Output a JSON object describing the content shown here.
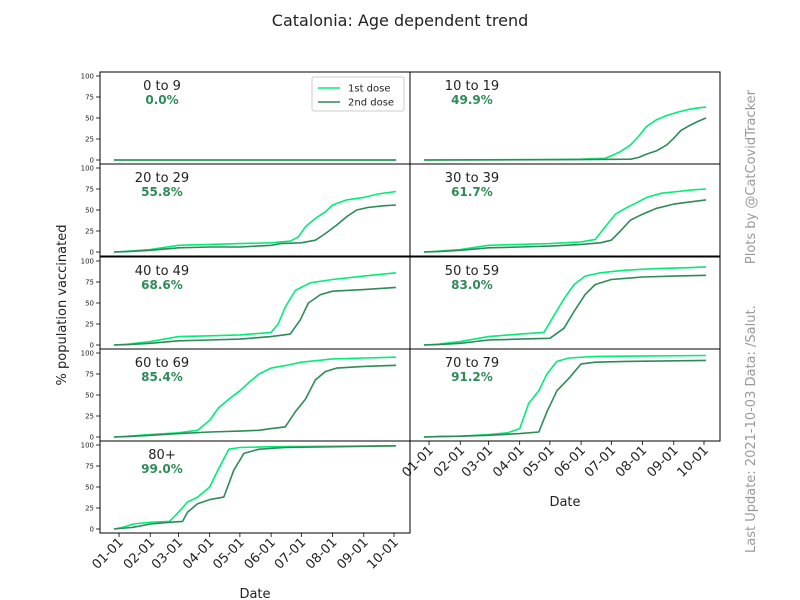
{
  "chart_data": {
    "type": "line",
    "title": "Catalonia: Age dependent trend",
    "xlabel": "Date",
    "ylabel": "% population vaccinated",
    "ylim": [
      0,
      100
    ],
    "yticks": [
      0,
      25,
      50,
      75,
      100
    ],
    "x_range": [
      "2020-12-27",
      "2021-10-03"
    ],
    "xticks": [
      {
        "date": "2021-01-01",
        "label": "01-01"
      },
      {
        "date": "2021-02-01",
        "label": "02-01"
      },
      {
        "date": "2021-03-01",
        "label": "03-01"
      },
      {
        "date": "2021-04-01",
        "label": "04-01"
      },
      {
        "date": "2021-05-01",
        "label": "05-01"
      },
      {
        "date": "2021-06-01",
        "label": "06-01"
      },
      {
        "date": "2021-07-01",
        "label": "07-01"
      },
      {
        "date": "2021-08-01",
        "label": "08-01"
      },
      {
        "date": "2021-09-01",
        "label": "09-01"
      },
      {
        "date": "2021-10-01",
        "label": "10-01"
      }
    ],
    "legend": {
      "position": "top-right",
      "entries": [
        "1st dose",
        "2nd dose"
      ]
    },
    "colors": {
      "first_dose": "#00ee77",
      "second_dose": "#2e8b57"
    },
    "groups": [
      {
        "label": "0 to 9",
        "pct": "0.0%",
        "first_dose": [
          [
            "2020-12-27",
            0
          ],
          [
            "2021-10-03",
            0
          ]
        ],
        "second_dose": [
          [
            "2020-12-27",
            0
          ],
          [
            "2021-10-03",
            0
          ]
        ]
      },
      {
        "label": "10 to 19",
        "pct": "49.9%",
        "first_dose": [
          [
            "2020-12-27",
            0
          ],
          [
            "2021-05-01",
            0.5
          ],
          [
            "2021-06-01",
            1
          ],
          [
            "2021-06-25",
            2
          ],
          [
            "2021-07-01",
            5
          ],
          [
            "2021-07-10",
            10
          ],
          [
            "2021-07-20",
            18
          ],
          [
            "2021-07-28",
            28
          ],
          [
            "2021-08-05",
            40
          ],
          [
            "2021-08-15",
            48
          ],
          [
            "2021-08-25",
            53
          ],
          [
            "2021-09-05",
            57
          ],
          [
            "2021-09-15",
            60
          ],
          [
            "2021-09-25",
            62
          ],
          [
            "2021-10-03",
            63
          ]
        ],
        "second_dose": [
          [
            "2020-12-27",
            0
          ],
          [
            "2021-06-01",
            0.5
          ],
          [
            "2021-07-20",
            1
          ],
          [
            "2021-07-28",
            3
          ],
          [
            "2021-08-05",
            7
          ],
          [
            "2021-08-15",
            11
          ],
          [
            "2021-08-25",
            18
          ],
          [
            "2021-09-01",
            26
          ],
          [
            "2021-09-08",
            35
          ],
          [
            "2021-09-15",
            40
          ],
          [
            "2021-09-25",
            46
          ],
          [
            "2021-10-03",
            50
          ]
        ]
      },
      {
        "label": "20 to 29",
        "pct": "55.8%",
        "first_dose": [
          [
            "2020-12-27",
            0
          ],
          [
            "2021-01-10",
            1
          ],
          [
            "2021-02-01",
            3
          ],
          [
            "2021-03-01",
            8
          ],
          [
            "2021-04-01",
            9
          ],
          [
            "2021-05-01",
            10
          ],
          [
            "2021-06-01",
            11
          ],
          [
            "2021-06-20",
            13
          ],
          [
            "2021-06-28",
            18
          ],
          [
            "2021-07-05",
            30
          ],
          [
            "2021-07-15",
            40
          ],
          [
            "2021-07-25",
            48
          ],
          [
            "2021-08-01",
            56
          ],
          [
            "2021-08-15",
            62
          ],
          [
            "2021-09-01",
            65
          ],
          [
            "2021-09-15",
            69
          ],
          [
            "2021-10-03",
            72
          ]
        ],
        "second_dose": [
          [
            "2020-12-27",
            0
          ],
          [
            "2021-01-10",
            0.5
          ],
          [
            "2021-02-01",
            2
          ],
          [
            "2021-03-01",
            5
          ],
          [
            "2021-04-01",
            6
          ],
          [
            "2021-05-01",
            6
          ],
          [
            "2021-06-01",
            8
          ],
          [
            "2021-06-10",
            10
          ],
          [
            "2021-07-01",
            11
          ],
          [
            "2021-07-15",
            14
          ],
          [
            "2021-07-25",
            22
          ],
          [
            "2021-08-05",
            32
          ],
          [
            "2021-08-15",
            42
          ],
          [
            "2021-08-25",
            50
          ],
          [
            "2021-09-05",
            53
          ],
          [
            "2021-09-20",
            55
          ],
          [
            "2021-10-03",
            56
          ]
        ]
      },
      {
        "label": "30 to 39",
        "pct": "61.7%",
        "first_dose": [
          [
            "2020-12-27",
            0
          ],
          [
            "2021-01-10",
            1
          ],
          [
            "2021-02-01",
            3
          ],
          [
            "2021-03-01",
            8
          ],
          [
            "2021-04-01",
            9
          ],
          [
            "2021-05-01",
            10
          ],
          [
            "2021-06-01",
            12
          ],
          [
            "2021-06-15",
            15
          ],
          [
            "2021-06-25",
            30
          ],
          [
            "2021-07-05",
            45
          ],
          [
            "2021-07-15",
            52
          ],
          [
            "2021-07-25",
            58
          ],
          [
            "2021-08-05",
            65
          ],
          [
            "2021-08-20",
            70
          ],
          [
            "2021-09-05",
            72
          ],
          [
            "2021-09-20",
            74
          ],
          [
            "2021-10-03",
            75
          ]
        ],
        "second_dose": [
          [
            "2020-12-27",
            0
          ],
          [
            "2021-01-10",
            0.5
          ],
          [
            "2021-02-01",
            2
          ],
          [
            "2021-03-01",
            5
          ],
          [
            "2021-04-01",
            6
          ],
          [
            "2021-05-01",
            7
          ],
          [
            "2021-06-01",
            9
          ],
          [
            "2021-06-20",
            11
          ],
          [
            "2021-07-01",
            14
          ],
          [
            "2021-07-10",
            25
          ],
          [
            "2021-07-20",
            38
          ],
          [
            "2021-08-01",
            45
          ],
          [
            "2021-08-15",
            52
          ],
          [
            "2021-09-01",
            57
          ],
          [
            "2021-09-20",
            60
          ],
          [
            "2021-10-03",
            62
          ]
        ]
      },
      {
        "label": "40 to 49",
        "pct": "68.6%",
        "first_dose": [
          [
            "2020-12-27",
            0
          ],
          [
            "2021-01-10",
            1
          ],
          [
            "2021-02-01",
            4
          ],
          [
            "2021-03-01",
            10
          ],
          [
            "2021-04-01",
            11
          ],
          [
            "2021-05-01",
            12
          ],
          [
            "2021-06-01",
            15
          ],
          [
            "2021-06-08",
            25
          ],
          [
            "2021-06-15",
            45
          ],
          [
            "2021-06-25",
            65
          ],
          [
            "2021-07-10",
            74
          ],
          [
            "2021-08-01",
            78
          ],
          [
            "2021-09-01",
            82
          ],
          [
            "2021-10-03",
            86
          ]
        ],
        "second_dose": [
          [
            "2020-12-27",
            0
          ],
          [
            "2021-01-10",
            0.5
          ],
          [
            "2021-02-01",
            2
          ],
          [
            "2021-03-01",
            5
          ],
          [
            "2021-04-01",
            6
          ],
          [
            "2021-05-01",
            7
          ],
          [
            "2021-06-01",
            10
          ],
          [
            "2021-06-20",
            13
          ],
          [
            "2021-06-30",
            30
          ],
          [
            "2021-07-08",
            50
          ],
          [
            "2021-07-20",
            60
          ],
          [
            "2021-08-01",
            64
          ],
          [
            "2021-09-01",
            66
          ],
          [
            "2021-10-03",
            68.6
          ]
        ]
      },
      {
        "label": "50 to 59",
        "pct": "83.0%",
        "first_dose": [
          [
            "2020-12-27",
            0
          ],
          [
            "2021-01-10",
            1
          ],
          [
            "2021-02-01",
            4
          ],
          [
            "2021-03-01",
            10
          ],
          [
            "2021-04-01",
            13
          ],
          [
            "2021-04-25",
            15
          ],
          [
            "2021-05-05",
            35
          ],
          [
            "2021-05-15",
            55
          ],
          [
            "2021-05-25",
            72
          ],
          [
            "2021-06-05",
            82
          ],
          [
            "2021-06-20",
            86
          ],
          [
            "2021-07-15",
            89
          ],
          [
            "2021-08-15",
            91
          ],
          [
            "2021-09-15",
            92
          ],
          [
            "2021-10-03",
            93
          ]
        ],
        "second_dose": [
          [
            "2020-12-27",
            0
          ],
          [
            "2021-01-10",
            0.5
          ],
          [
            "2021-02-01",
            2
          ],
          [
            "2021-03-01",
            6
          ],
          [
            "2021-04-01",
            7
          ],
          [
            "2021-05-01",
            8
          ],
          [
            "2021-05-15",
            20
          ],
          [
            "2021-05-25",
            40
          ],
          [
            "2021-06-05",
            60
          ],
          [
            "2021-06-15",
            72
          ],
          [
            "2021-07-01",
            78
          ],
          [
            "2021-08-01",
            81
          ],
          [
            "2021-09-01",
            82
          ],
          [
            "2021-10-03",
            83
          ]
        ]
      },
      {
        "label": "60 to 69",
        "pct": "85.4%",
        "first_dose": [
          [
            "2020-12-27",
            0
          ],
          [
            "2021-01-10",
            1
          ],
          [
            "2021-02-01",
            3
          ],
          [
            "2021-03-01",
            5
          ],
          [
            "2021-03-20",
            8
          ],
          [
            "2021-04-01",
            20
          ],
          [
            "2021-04-10",
            35
          ],
          [
            "2021-04-20",
            45
          ],
          [
            "2021-05-01",
            55
          ],
          [
            "2021-05-10",
            65
          ],
          [
            "2021-05-20",
            75
          ],
          [
            "2021-06-01",
            82
          ],
          [
            "2021-06-15",
            85
          ],
          [
            "2021-07-01",
            89
          ],
          [
            "2021-08-01",
            93
          ],
          [
            "2021-09-01",
            94
          ],
          [
            "2021-10-03",
            95
          ]
        ],
        "second_dose": [
          [
            "2020-12-27",
            0
          ],
          [
            "2021-01-10",
            0.5
          ],
          [
            "2021-02-01",
            2
          ],
          [
            "2021-03-01",
            4
          ],
          [
            "2021-04-01",
            6
          ],
          [
            "2021-05-01",
            7
          ],
          [
            "2021-05-20",
            8
          ],
          [
            "2021-06-01",
            10
          ],
          [
            "2021-06-15",
            12
          ],
          [
            "2021-06-25",
            30
          ],
          [
            "2021-07-05",
            45
          ],
          [
            "2021-07-15",
            68
          ],
          [
            "2021-07-25",
            78
          ],
          [
            "2021-08-05",
            82
          ],
          [
            "2021-09-01",
            84
          ],
          [
            "2021-10-03",
            85.4
          ]
        ]
      },
      {
        "label": "70 to 79",
        "pct": "91.2%",
        "first_dose": [
          [
            "2020-12-27",
            0
          ],
          [
            "2021-01-10",
            0.5
          ],
          [
            "2021-02-01",
            1
          ],
          [
            "2021-03-01",
            3
          ],
          [
            "2021-03-20",
            5
          ],
          [
            "2021-04-01",
            10
          ],
          [
            "2021-04-10",
            40
          ],
          [
            "2021-04-20",
            55
          ],
          [
            "2021-04-28",
            75
          ],
          [
            "2021-05-08",
            90
          ],
          [
            "2021-05-20",
            94
          ],
          [
            "2021-06-15",
            96
          ],
          [
            "2021-10-03",
            97
          ]
        ],
        "second_dose": [
          [
            "2020-12-27",
            0
          ],
          [
            "2021-01-10",
            0.5
          ],
          [
            "2021-02-01",
            1
          ],
          [
            "2021-03-01",
            2
          ],
          [
            "2021-04-01",
            4
          ],
          [
            "2021-04-20",
            6
          ],
          [
            "2021-04-28",
            30
          ],
          [
            "2021-05-08",
            55
          ],
          [
            "2021-05-20",
            70
          ],
          [
            "2021-06-01",
            87
          ],
          [
            "2021-06-15",
            89
          ],
          [
            "2021-07-15",
            90
          ],
          [
            "2021-10-03",
            91.2
          ]
        ]
      },
      {
        "label": "80+",
        "pct": "99.0%",
        "first_dose": [
          [
            "2020-12-27",
            0
          ],
          [
            "2021-01-05",
            2
          ],
          [
            "2021-01-15",
            6
          ],
          [
            "2021-02-01",
            8
          ],
          [
            "2021-02-20",
            9
          ],
          [
            "2021-03-01",
            20
          ],
          [
            "2021-03-10",
            32
          ],
          [
            "2021-03-20",
            38
          ],
          [
            "2021-04-01",
            50
          ],
          [
            "2021-04-10",
            72
          ],
          [
            "2021-04-20",
            95
          ],
          [
            "2021-05-01",
            97
          ],
          [
            "2021-06-01",
            98
          ],
          [
            "2021-10-03",
            99
          ]
        ],
        "second_dose": [
          [
            "2020-12-27",
            0
          ],
          [
            "2021-01-15",
            2
          ],
          [
            "2021-02-01",
            6
          ],
          [
            "2021-02-20",
            8
          ],
          [
            "2021-03-05",
            9
          ],
          [
            "2021-03-10",
            20
          ],
          [
            "2021-03-20",
            30
          ],
          [
            "2021-04-01",
            35
          ],
          [
            "2021-04-15",
            38
          ],
          [
            "2021-04-25",
            70
          ],
          [
            "2021-05-05",
            90
          ],
          [
            "2021-05-20",
            95
          ],
          [
            "2021-06-15",
            97
          ],
          [
            "2021-10-03",
            99
          ]
        ]
      }
    ]
  },
  "credit": {
    "line1": "Last Update: 2021-10-03 Data: /Salut.",
    "line2": "Plots by @CatCovidTracker"
  }
}
